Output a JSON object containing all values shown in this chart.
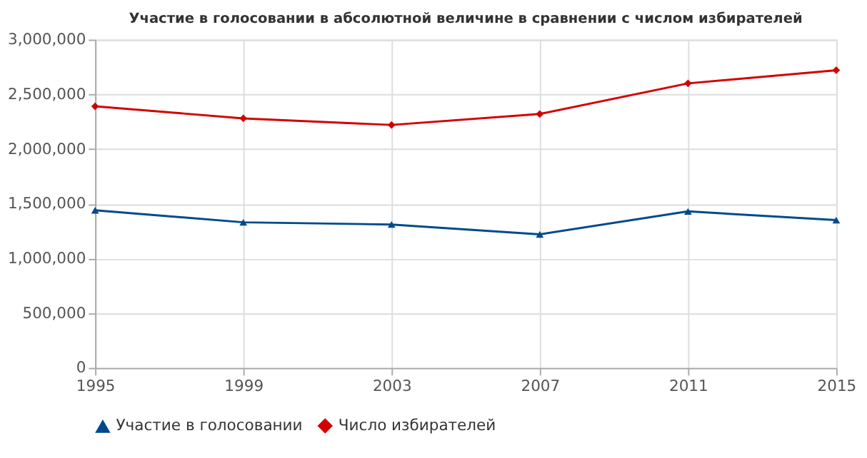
{
  "chart_data": {
    "type": "line",
    "title": "Участие в голосовании в абсолютной величине в сравнении с числом избирателей",
    "x": [
      1995,
      1999,
      2003,
      2007,
      2011,
      2015
    ],
    "series": [
      {
        "name": "Участие в голосовании",
        "color": "#004a8c",
        "marker": "triangle",
        "values": [
          1440000,
          1330000,
          1310000,
          1220000,
          1430000,
          1350000
        ]
      },
      {
        "name": "Число избирателей",
        "color": "#d40000",
        "marker": "diamond",
        "values": [
          2390000,
          2280000,
          2220000,
          2320000,
          2600000,
          2720000
        ]
      }
    ],
    "xlim": [
      1995,
      2015
    ],
    "xticks": [
      1995,
      1999,
      2003,
      2007,
      2011,
      2015
    ],
    "ylim": [
      0,
      3000000
    ],
    "yticks": [
      0,
      {
        "value": 500000,
        "label": "500,000"
      },
      {
        "value": 1000000,
        "label": "1,000,000"
      },
      {
        "value": 1500000,
        "label": "1,500,000"
      },
      {
        "value": 2000000,
        "label": "2,000,000"
      },
      {
        "value": 2500000,
        "label": "2,500,000"
      },
      {
        "value": 3000000,
        "label": "3,000,000"
      }
    ],
    "grid": true,
    "legend": "bottom",
    "line_style": "solid"
  }
}
